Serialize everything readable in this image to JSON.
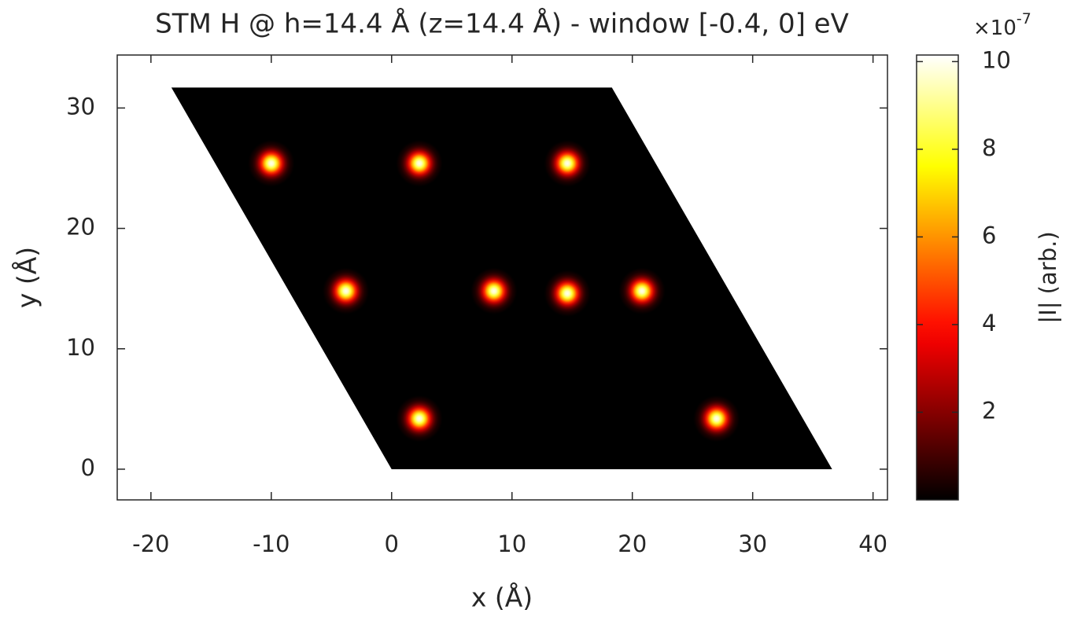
{
  "chart_data": {
    "type": "heatmap",
    "title": "STM H @ h=14.4 Å (z=14.4 Å) - window [-0.4, 0] eV",
    "x_label": "x (Å)",
    "y_label": "y (Å)",
    "xlim": [
      -22.8,
      41.2
    ],
    "ylim": [
      -2.55,
      34.4
    ],
    "xticks": [
      -20,
      -10,
      0,
      10,
      20,
      30,
      40
    ],
    "yticks": [
      0,
      10,
      20,
      30
    ],
    "region": {
      "x": [
        0,
        36.6,
        18.3,
        -18.3
      ],
      "y": [
        0,
        0,
        31.7,
        31.7
      ]
    },
    "spots": {
      "x": [
        -10,
        2.3,
        14.6,
        -3.8,
        8.5,
        20.8,
        2.3,
        14.6,
        27
      ],
      "y": [
        25.4,
        25.4,
        25.4,
        14.8,
        14.8,
        14.8,
        4.2,
        14.6,
        4.2
      ],
      "values": [
        10,
        10,
        10,
        10,
        10,
        10,
        10,
        10,
        10
      ]
    },
    "colormap": "hot",
    "colorbar": {
      "label": "|I| (arb.)",
      "clim": [
        0,
        10.15
      ],
      "ticks": [
        2,
        4,
        6,
        8,
        10
      ],
      "exponent_base": "×10",
      "exponent_power": "-7"
    }
  }
}
